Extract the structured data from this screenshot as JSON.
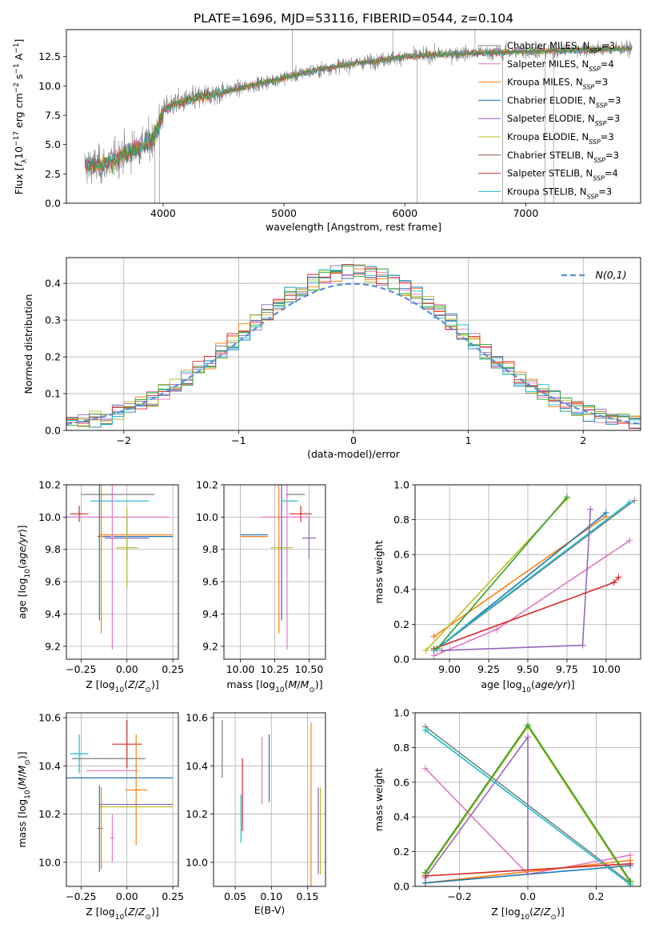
{
  "colors": [
    "#7f7f7f",
    "#e377c2",
    "#ff7f0e",
    "#1f77b4",
    "#9467bd",
    "#bcbd22",
    "#17becf",
    "#8c564b",
    "#d62728",
    "#2ca02c"
  ],
  "legend_entries": [
    "Chabrier MILES, N_SSP=3",
    "Salpeter MILES, N_SSP=4",
    "Kroupa MILES, N_SSP=3",
    "Chabrier ELODIE, N_SSP=3",
    "Salpeter ELODIE, N_SSP=3",
    "Kroupa ELODIE, N_SSP=3",
    "Chabrier STELIB, N_SSP=3",
    "Salpeter STELIB, N_SSP=4",
    "Kroupa STELIB, N_SSP=3"
  ],
  "chart_data": [
    {
      "id": "spectrum",
      "type": "line",
      "title": "PLATE=1696, MJD=53116, FIBERID=0544, z=0.104",
      "xlabel": "wavelength [Angstrom, rest frame]",
      "ylabel": "Flux [f_λ 10^-17 erg cm^-2 s^-1 A^-1]",
      "xlim": [
        3200,
        7950
      ],
      "ylim": [
        0,
        14.8
      ],
      "xticks": [
        "4000",
        "5000",
        "6000",
        "7000"
      ],
      "yticks": [
        "0.0",
        "2.5",
        "5.0",
        "7.5",
        "10.0",
        "12.5"
      ],
      "legend_position": "upper-right",
      "grid": false,
      "continuum_knots": {
        "x": [
          3300,
          3500,
          3700,
          3900,
          3950,
          4000,
          4100,
          4300,
          4500,
          4800,
          5000,
          5200,
          5500,
          5800,
          6000,
          6300,
          6600,
          6900,
          7200,
          7500,
          7900
        ],
        "y": [
          3.2,
          3.2,
          4.3,
          5.3,
          6.2,
          7.9,
          8.5,
          9.0,
          9.5,
          10.2,
          10.7,
          11.2,
          11.8,
          12.2,
          12.5,
          12.7,
          12.8,
          12.9,
          13.0,
          13.1,
          13.2
        ]
      }
    },
    {
      "id": "residual-histogram",
      "type": "histogram",
      "xlabel": "(data-model)/error",
      "ylabel": "Normed distribution",
      "xlim": [
        -2.5,
        2.5
      ],
      "ylim": [
        0,
        0.47
      ],
      "xticks": [
        "-2",
        "-1",
        "0",
        "1",
        "2"
      ],
      "yticks": [
        "0.0",
        "0.1",
        "0.2",
        "0.3",
        "0.4"
      ],
      "grid": true,
      "reference_curve": {
        "label": "N(0,1)",
        "mean": 0,
        "sigma": 1
      }
    },
    {
      "id": "age-vs-metallicity",
      "type": "errorbar",
      "xlabel": "Z [log10(Z/Z⊙)]",
      "ylabel": "age  [log10(age/yr)]",
      "xlim": [
        -0.33,
        0.28
      ],
      "ylim": [
        9.12,
        10.2
      ],
      "xticks": [
        "-0.25",
        "0.00",
        "0.25"
      ],
      "yticks": [
        "9.2",
        "9.4",
        "9.6",
        "9.8",
        "10.0",
        "10.2"
      ],
      "grid": true,
      "points": [
        {
          "x": -0.05,
          "y": 10.14,
          "xerr": 0.2,
          "yerr": 0.0
        },
        {
          "x": -0.04,
          "y": 10.1,
          "xerr": 0.16,
          "yerr": 0.0
        },
        {
          "x": -0.26,
          "y": 10.02,
          "xerr": 0.05,
          "yerr": 0.05
        },
        {
          "x": -0.1,
          "y": 10.0,
          "xerr": 0.33,
          "yerr": 0.0
        },
        {
          "x": 0.05,
          "y": 9.88,
          "xerr": 0.2,
          "yerr": 0.0
        },
        {
          "x": 0.05,
          "y": 9.89,
          "xerr": 0.2,
          "yerr": 0.0
        },
        {
          "x": 0.0,
          "y": 9.87,
          "xerr": 0.12,
          "yerr": 0.13
        },
        {
          "x": 0.0,
          "y": 9.81,
          "xerr": 0.06,
          "yerr": 0.25
        },
        {
          "x": -0.15,
          "y": 9.88,
          "xerr": 0.01,
          "yerr": 0.52
        },
        {
          "x": -0.14,
          "y": 9.88,
          "xerr": 0.01,
          "yerr": 0.6
        },
        {
          "x": -0.08,
          "y": 9.88,
          "xerr": 0.01,
          "yerr": 0.7
        }
      ]
    },
    {
      "id": "age-vs-mass",
      "type": "errorbar",
      "xlabel": "mass [log10(M/M⊙)]",
      "ylabel": "",
      "xlim": [
        9.88,
        10.62
      ],
      "ylim": [
        9.12,
        10.2
      ],
      "xticks": [
        "10.00",
        "10.25",
        "10.50"
      ],
      "yticks": [
        "9.2",
        "9.4",
        "9.6",
        "9.8",
        "10.0",
        "10.2"
      ],
      "grid": true,
      "points": [
        {
          "x": 10.4,
          "y": 10.14,
          "xerr": 0.07,
          "yerr": 0.0
        },
        {
          "x": 10.36,
          "y": 10.1,
          "xerr": 0.06,
          "yerr": 0.0
        },
        {
          "x": 10.44,
          "y": 10.02,
          "xerr": 0.08,
          "yerr": 0.05
        },
        {
          "x": 10.33,
          "y": 10.0,
          "xerr": 0.18,
          "yerr": 0.0
        },
        {
          "x": 10.1,
          "y": 9.89,
          "xerr": 0.1,
          "yerr": 0.0
        },
        {
          "x": 10.1,
          "y": 9.88,
          "xerr": 0.1,
          "yerr": 0.0
        },
        {
          "x": 10.5,
          "y": 9.87,
          "xerr": 0.05,
          "yerr": 0.13
        },
        {
          "x": 10.3,
          "y": 9.81,
          "xerr": 0.08,
          "yerr": 0.0
        },
        {
          "x": 10.3,
          "y": 9.88,
          "xerr": 0.0,
          "yerr": 0.52
        },
        {
          "x": 10.28,
          "y": 9.88,
          "xerr": 0.0,
          "yerr": 0.6
        },
        {
          "x": 10.34,
          "y": 9.88,
          "xerr": 0.0,
          "yerr": 0.7
        }
      ]
    },
    {
      "id": "mass-weight-vs-age",
      "type": "line",
      "xlabel": "age  [log10(age/yr)]",
      "ylabel": "mass weight",
      "xlim": [
        8.78,
        10.22
      ],
      "ylim": [
        0,
        1.0
      ],
      "xticks": [
        "9.00",
        "9.25",
        "9.50",
        "9.75",
        "10.00"
      ],
      "yticks": [
        "0.0",
        "0.2",
        "0.4",
        "0.6",
        "0.8",
        "1.0"
      ],
      "grid": true,
      "series": [
        {
          "x": [
            8.92,
            10.18
          ],
          "y": [
            0.06,
            0.91
          ]
        },
        {
          "x": [
            8.9,
            9.3,
            10.15
          ],
          "y": [
            0.02,
            0.17,
            0.68
          ]
        },
        {
          "x": [
            8.9,
            10.0
          ],
          "y": [
            0.13,
            0.82
          ]
        },
        {
          "x": [
            8.92,
            10.0
          ],
          "y": [
            0.06,
            0.84
          ]
        },
        {
          "x": [
            8.95,
            9.85,
            9.9
          ],
          "y": [
            0.05,
            0.08,
            0.86
          ]
        },
        {
          "x": [
            8.85,
            9.75
          ],
          "y": [
            0.05,
            0.92
          ]
        },
        {
          "x": [
            8.9,
            10.15
          ],
          "y": [
            0.05,
            0.9
          ]
        },
        {
          "x": [
            8.9,
            10.05,
            10.08
          ],
          "y": [
            0.06,
            0.44,
            0.47
          ]
        },
        {
          "x": [
            8.92,
            9.75
          ],
          "y": [
            0.06,
            0.93
          ]
        }
      ]
    },
    {
      "id": "mass-vs-metallicity",
      "type": "errorbar",
      "xlabel": "Z [log10(Z/Z⊙)]",
      "ylabel": "mass [log10(M/M⊙)]",
      "xlim": [
        -0.33,
        0.28
      ],
      "ylim": [
        9.9,
        10.62
      ],
      "xticks": [
        "-0.25",
        "0.00",
        "0.25"
      ],
      "yticks": [
        "10.0",
        "10.2",
        "10.4",
        "10.6"
      ],
      "grid": true,
      "points": [
        {
          "x": -0.1,
          "y": 10.43,
          "xerr": 0.2,
          "yerr": 0.0
        },
        {
          "x": -0.26,
          "y": 10.45,
          "xerr": 0.05,
          "yerr": 0.08
        },
        {
          "x": 0.0,
          "y": 10.49,
          "xerr": 0.08,
          "yerr": 0.1
        },
        {
          "x": -0.08,
          "y": 10.38,
          "xerr": 0.14,
          "yerr": 0.0
        },
        {
          "x": -0.05,
          "y": 10.35,
          "xerr": 0.3,
          "yerr": 0.0
        },
        {
          "x": 0.05,
          "y": 10.3,
          "xerr": 0.06,
          "yerr": 0.23
        },
        {
          "x": 0.05,
          "y": 10.24,
          "xerr": 0.2,
          "yerr": 0.0
        },
        {
          "x": 0.05,
          "y": 10.23,
          "xerr": 0.2,
          "yerr": 0.0
        },
        {
          "x": -0.15,
          "y": 10.14,
          "xerr": 0.01,
          "yerr": 0.18
        },
        {
          "x": -0.14,
          "y": 10.14,
          "xerr": 0.01,
          "yerr": 0.17
        },
        {
          "x": -0.08,
          "y": 10.1,
          "xerr": 0.01,
          "yerr": 0.1
        }
      ]
    },
    {
      "id": "mass-vs-extinction",
      "type": "errorbar",
      "xlabel": "E(B-V)",
      "ylabel": "",
      "xlim": [
        0.02,
        0.175
      ],
      "ylim": [
        9.9,
        10.62
      ],
      "xticks": [
        "0.05",
        "0.10",
        "0.15"
      ],
      "yticks": [
        "10.0",
        "10.2",
        "10.4",
        "10.6"
      ],
      "grid": true,
      "points": [
        {
          "x": 0.032,
          "y": 10.47,
          "xerr": 0.0,
          "yerr": 0.12
        },
        {
          "x": 0.058,
          "y": 10.18,
          "xerr": 0.0,
          "yerr": 0.1
        },
        {
          "x": 0.06,
          "y": 10.28,
          "xerr": 0.0,
          "yerr": 0.15
        },
        {
          "x": 0.087,
          "y": 10.38,
          "xerr": 0.0,
          "yerr": 0.14
        },
        {
          "x": 0.097,
          "y": 10.39,
          "xerr": 0.0,
          "yerr": 0.14
        },
        {
          "x": 0.155,
          "y": 10.18,
          "xerr": 0.0,
          "yerr": 0.4
        },
        {
          "x": 0.165,
          "y": 10.13,
          "xerr": 0.0,
          "yerr": 0.18
        },
        {
          "x": 0.168,
          "y": 10.13,
          "xerr": 0.0,
          "yerr": 0.18
        }
      ]
    },
    {
      "id": "mass-weight-vs-metallicity",
      "type": "line",
      "xlabel": "Z [log10(Z/Z⊙)]",
      "ylabel": "mass weight",
      "xlim": [
        -0.33,
        0.33
      ],
      "ylim": [
        0,
        1.0
      ],
      "xticks": [
        "-0.2",
        "0.0",
        "0.2"
      ],
      "yticks": [
        "0.0",
        "0.2",
        "0.4",
        "0.6",
        "0.8",
        "1.0"
      ],
      "grid": true,
      "series": [
        {
          "x": [
            -0.3,
            0.3
          ],
          "y": [
            0.92,
            0.02
          ]
        },
        {
          "x": [
            -0.3,
            0.0,
            0.3
          ],
          "y": [
            0.68,
            0.07,
            0.18
          ]
        },
        {
          "x": [
            -0.3,
            0.3
          ],
          "y": [
            0.02,
            0.15
          ]
        },
        {
          "x": [
            -0.3,
            0.3
          ],
          "y": [
            0.02,
            0.12
          ]
        },
        {
          "x": [
            -0.3,
            0.0,
            0.0
          ],
          "y": [
            0.05,
            0.86,
            0.07
          ]
        },
        {
          "x": [
            -0.3,
            0.0,
            0.3
          ],
          "y": [
            0.07,
            0.92,
            0.02
          ]
        },
        {
          "x": [
            -0.3,
            0.3
          ],
          "y": [
            0.9,
            0.01
          ]
        },
        {
          "x": [
            -0.3,
            0.3
          ],
          "y": [
            0.06,
            0.13
          ]
        },
        {
          "x": [
            -0.3,
            0.0,
            0.3
          ],
          "y": [
            0.08,
            0.93,
            0.03
          ]
        }
      ]
    }
  ]
}
